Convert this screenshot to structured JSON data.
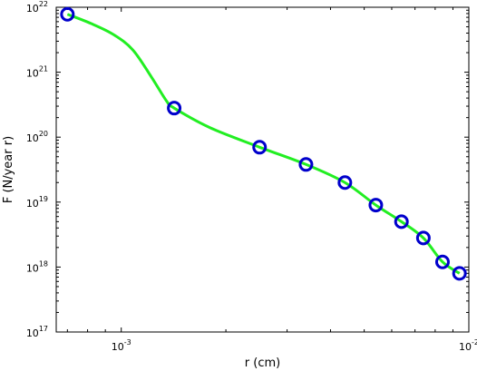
{
  "chart_data": {
    "type": "line",
    "xlabel": "r (cm)",
    "ylabel": "F (N/year  r)",
    "x_scale": "log",
    "y_scale": "log",
    "xlim": [
      0.00065,
      0.01
    ],
    "ylim": [
      1e+17,
      1e+22
    ],
    "grid": false,
    "x_ticks": [
      {
        "value": 0.001,
        "base": "10",
        "exp": "-3"
      },
      {
        "value": 0.01,
        "base": "10",
        "exp": "-2"
      }
    ],
    "y_ticks": [
      {
        "value": 1e+17,
        "base": "10",
        "exp": "17"
      },
      {
        "value": 1e+18,
        "base": "10",
        "exp": "18"
      },
      {
        "value": 1e+19,
        "base": "10",
        "exp": "19"
      },
      {
        "value": 1e+20,
        "base": "10",
        "exp": "20"
      },
      {
        "value": 1e+21,
        "base": "10",
        "exp": "21"
      },
      {
        "value": 1e+22,
        "base": "10",
        "exp": "22"
      }
    ],
    "series": [
      {
        "style": "line",
        "color": "#22ee22",
        "x": [
          0.0007,
          0.00082,
          0.00095,
          0.00108,
          0.00122,
          0.00135,
          0.00142,
          0.0018,
          0.0025,
          0.0034,
          0.0044,
          0.0054,
          0.0064,
          0.0074,
          0.0084,
          0.0094
        ],
        "y": [
          7.8e+21,
          5.6e+21,
          3.8e+21,
          2.2e+21,
          8.5e+20,
          3.6e+20,
          2.8e+20,
          1.4e+20,
          7e+19,
          3.8e+19,
          2e+19,
          9e+18,
          5e+18,
          2.8e+18,
          1.2e+18,
          8e+17
        ]
      },
      {
        "style": "markers",
        "color": "#0000cc",
        "x": [
          0.0007,
          0.00142,
          0.0025,
          0.0034,
          0.0044,
          0.0054,
          0.0064,
          0.0074,
          0.0084,
          0.0094
        ],
        "y": [
          7.8e+21,
          2.8e+20,
          7e+19,
          3.8e+19,
          2e+19,
          9e+18,
          5e+18,
          2.8e+18,
          1.2e+18,
          8e+17
        ]
      }
    ]
  }
}
